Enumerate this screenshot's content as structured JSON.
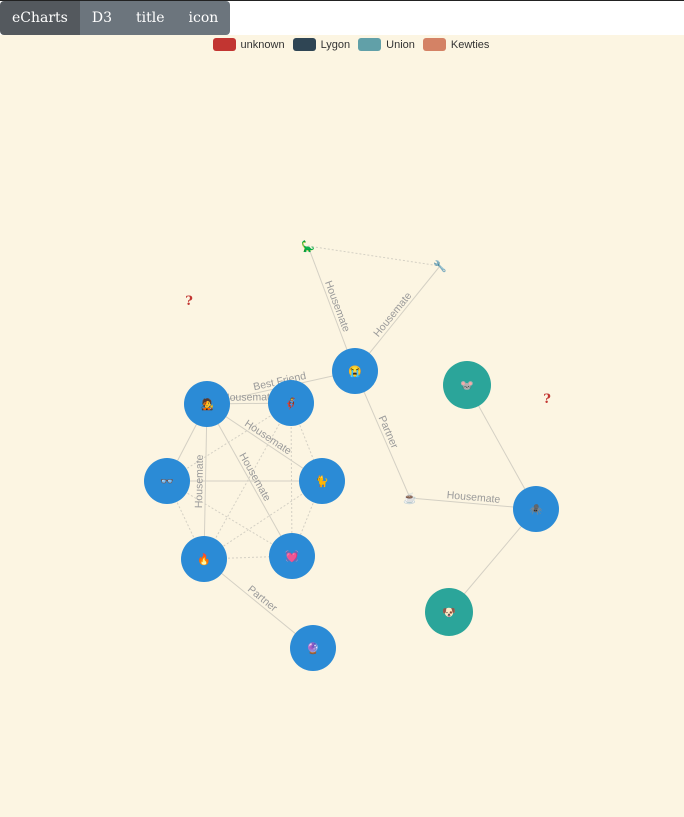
{
  "tabs": [
    {
      "label": "eCharts"
    },
    {
      "label": "D3"
    },
    {
      "label": "title"
    },
    {
      "label": "icon"
    }
  ],
  "legend": [
    {
      "label": "unknown",
      "color": "#c23531"
    },
    {
      "label": "Lygon",
      "color": "#2f4554"
    },
    {
      "label": "Union",
      "color": "#61a0a8"
    },
    {
      "label": "Kewties",
      "color": "#d48265"
    }
  ],
  "colors": {
    "node_blue": "#2b8bd6",
    "node_teal": "#2ba59a",
    "background": "#fcf5e2"
  },
  "nodes": [
    {
      "id": "dino",
      "icon": "🦕",
      "style": "bare"
    },
    {
      "id": "wrench",
      "icon": "🔧",
      "style": "bare"
    },
    {
      "id": "question-1",
      "icon": "?",
      "style": "question"
    },
    {
      "id": "question-2",
      "icon": "?",
      "style": "question"
    },
    {
      "id": "crying",
      "icon": "😭",
      "style": "blue"
    },
    {
      "id": "hacker",
      "icon": "🧑‍🎤",
      "style": "blue"
    },
    {
      "id": "superhero",
      "icon": "🦸",
      "style": "blue"
    },
    {
      "id": "glasses",
      "icon": "👓",
      "style": "blue"
    },
    {
      "id": "cat",
      "icon": "🐈",
      "style": "blue"
    },
    {
      "id": "fire",
      "icon": "🔥",
      "style": "blue"
    },
    {
      "id": "heart",
      "icon": "💓",
      "style": "blue"
    },
    {
      "id": "crystal",
      "icon": "🔮",
      "style": "blue"
    },
    {
      "id": "coffee",
      "icon": "☕",
      "style": "bare"
    },
    {
      "id": "spider",
      "icon": "🕷️",
      "style": "blue"
    },
    {
      "id": "mouse",
      "icon": "🐭",
      "style": "teal"
    },
    {
      "id": "dog",
      "icon": "🐶",
      "style": "teal"
    }
  ],
  "edges": [
    {
      "source": "dino",
      "target": "crying",
      "label": "Housemate"
    },
    {
      "source": "wrench",
      "target": "crying",
      "label": "Housemate"
    },
    {
      "source": "dino",
      "target": "wrench",
      "label": "",
      "dashed": true
    },
    {
      "source": "crying",
      "target": "hacker",
      "label": "Best Friend"
    },
    {
      "source": "crying",
      "target": "coffee",
      "label": "Partner"
    },
    {
      "source": "hacker",
      "target": "superhero",
      "label": "Housemate"
    },
    {
      "source": "hacker",
      "target": "cat",
      "label": "Housemate"
    },
    {
      "source": "hacker",
      "target": "heart",
      "label": "Housemate"
    },
    {
      "source": "hacker",
      "target": "fire",
      "label": "Housemate"
    },
    {
      "source": "hacker",
      "target": "glasses",
      "label": ""
    },
    {
      "source": "glasses",
      "target": "cat",
      "label": ""
    },
    {
      "source": "glasses",
      "target": "fire",
      "label": "",
      "dashed": true
    },
    {
      "source": "glasses",
      "target": "heart",
      "label": "",
      "dashed": true
    },
    {
      "source": "glasses",
      "target": "superhero",
      "label": "",
      "dashed": true
    },
    {
      "source": "superhero",
      "target": "fire",
      "label": "",
      "dashed": true
    },
    {
      "source": "superhero",
      "target": "heart",
      "label": "",
      "dashed": true
    },
    {
      "source": "superhero",
      "target": "cat",
      "label": "",
      "dashed": true
    },
    {
      "source": "cat",
      "target": "fire",
      "label": "",
      "dashed": true
    },
    {
      "source": "cat",
      "target": "heart",
      "label": "",
      "dashed": true
    },
    {
      "source": "fire",
      "target": "heart",
      "label": "",
      "dashed": true
    },
    {
      "source": "fire",
      "target": "crystal",
      "label": "Partner"
    },
    {
      "source": "coffee",
      "target": "spider",
      "label": "Housemate"
    },
    {
      "source": "mouse",
      "target": "spider",
      "label": ""
    },
    {
      "source": "dog",
      "target": "spider",
      "label": ""
    }
  ]
}
